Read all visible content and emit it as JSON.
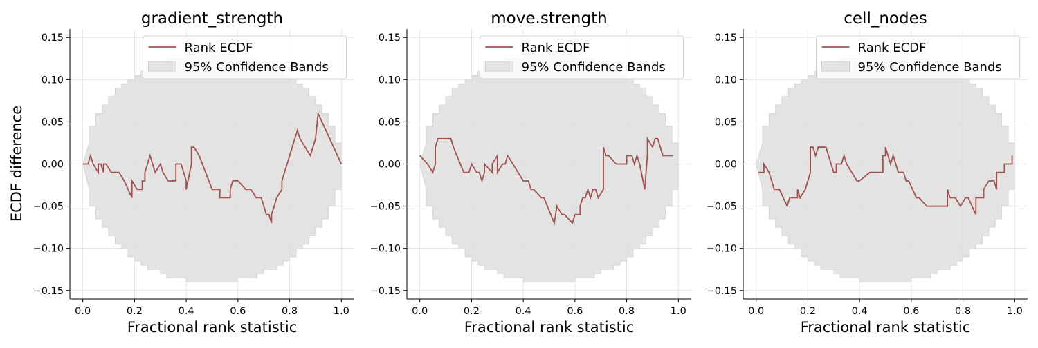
{
  "figure": {
    "ylabel": "ECDF difference"
  },
  "chart_data": [
    {
      "type": "line",
      "title": "gradient_strength",
      "xlabel": "Fractional rank statistic",
      "ylabel": "ECDF difference",
      "xlim": [
        -0.05,
        1.05
      ],
      "ylim": [
        -0.16,
        0.16
      ],
      "x_ticks": [
        "0.0",
        "0.2",
        "0.4",
        "0.6",
        "0.8",
        "1.0"
      ],
      "y_ticks": [
        "0.15",
        "0.10",
        "0.05",
        "0.00",
        "−0.05",
        "−0.10",
        "−0.15"
      ],
      "grid": true,
      "legend": {
        "position": "upper center",
        "entries": [
          "Rank ECDF",
          "95% Confidence Bands"
        ]
      },
      "series": [
        {
          "name": "Rank ECDF",
          "color": "#a0524f",
          "x": [
            0.0,
            0.02,
            0.03,
            0.04,
            0.06,
            0.06,
            0.07,
            0.08,
            0.08,
            0.09,
            0.11,
            0.14,
            0.16,
            0.19,
            0.19,
            0.21,
            0.23,
            0.23,
            0.24,
            0.24,
            0.26,
            0.27,
            0.28,
            0.3,
            0.31,
            0.33,
            0.33,
            0.36,
            0.36,
            0.38,
            0.4,
            0.4,
            0.42,
            0.42,
            0.43,
            0.45,
            0.5,
            0.53,
            0.53,
            0.57,
            0.57,
            0.58,
            0.6,
            0.6,
            0.63,
            0.65,
            0.67,
            0.69,
            0.71,
            0.72,
            0.73,
            0.73,
            0.74,
            0.75,
            0.75,
            0.77,
            0.77,
            0.78,
            0.78,
            0.79,
            0.79,
            0.81,
            0.81,
            0.83,
            0.83,
            0.84,
            0.84,
            0.86,
            0.86,
            0.88,
            0.9,
            0.91,
            0.91,
            1.0
          ],
          "y": [
            0.0,
            0.0,
            0.01,
            0.0,
            -0.01,
            0.0,
            0.0,
            -0.01,
            0.0,
            0.0,
            -0.01,
            -0.01,
            -0.02,
            -0.04,
            -0.02,
            -0.03,
            -0.03,
            -0.02,
            -0.02,
            -0.01,
            0.01,
            0.0,
            -0.01,
            0.0,
            -0.01,
            -0.02,
            -0.02,
            -0.02,
            0.0,
            0.0,
            -0.02,
            -0.03,
            0.0,
            0.02,
            0.02,
            0.01,
            -0.03,
            -0.03,
            -0.04,
            -0.04,
            -0.03,
            -0.02,
            -0.02,
            -0.02,
            -0.03,
            -0.03,
            -0.04,
            -0.04,
            -0.06,
            -0.06,
            -0.07,
            -0.06,
            -0.05,
            -0.04,
            -0.04,
            -0.03,
            -0.02,
            -0.01,
            -0.01,
            0.0,
            0.0,
            0.02,
            0.02,
            0.04,
            0.04,
            0.03,
            0.03,
            0.02,
            0.02,
            0.01,
            0.03,
            0.06,
            0.06,
            0.0
          ]
        }
      ]
    },
    {
      "type": "line",
      "title": "move.strength",
      "xlabel": "Fractional rank statistic",
      "ylabel": "",
      "xlim": [
        -0.05,
        1.05
      ],
      "ylim": [
        -0.16,
        0.16
      ],
      "x_ticks": [
        "0.0",
        "0.2",
        "0.4",
        "0.6",
        "0.8",
        "1.0"
      ],
      "y_ticks": [
        "0.15",
        "0.10",
        "0.05",
        "0.00",
        "−0.05",
        "−0.10",
        "−0.15"
      ],
      "grid": true,
      "legend": {
        "position": "upper center",
        "entries": [
          "Rank ECDF",
          "95% Confidence Bands"
        ]
      },
      "series": [
        {
          "name": "Rank ECDF",
          "color": "#a0524f",
          "x": [
            0.0,
            0.03,
            0.05,
            0.05,
            0.06,
            0.06,
            0.07,
            0.07,
            0.12,
            0.13,
            0.17,
            0.19,
            0.2,
            0.22,
            0.23,
            0.24,
            0.25,
            0.25,
            0.28,
            0.28,
            0.3,
            0.3,
            0.32,
            0.33,
            0.34,
            0.34,
            0.4,
            0.42,
            0.43,
            0.44,
            0.47,
            0.48,
            0.52,
            0.53,
            0.55,
            0.56,
            0.59,
            0.6,
            0.62,
            0.62,
            0.63,
            0.64,
            0.65,
            0.66,
            0.67,
            0.68,
            0.69,
            0.69,
            0.71,
            0.71,
            0.72,
            0.73,
            0.76,
            0.76,
            0.78,
            0.8,
            0.8,
            0.82,
            0.83,
            0.84,
            0.85,
            0.87,
            0.88,
            0.88,
            0.9,
            0.91,
            0.92,
            0.94,
            0.95,
            0.97,
            0.98
          ],
          "y": [
            0.01,
            0.0,
            -0.01,
            -0.01,
            0.0,
            0.02,
            0.03,
            0.03,
            0.03,
            0.02,
            -0.01,
            -0.01,
            0.0,
            -0.01,
            -0.01,
            -0.02,
            -0.01,
            0.0,
            -0.01,
            0.0,
            0.01,
            -0.01,
            0.0,
            0.0,
            0.01,
            0.01,
            -0.02,
            -0.02,
            -0.03,
            -0.03,
            -0.04,
            -0.04,
            -0.07,
            -0.05,
            -0.06,
            -0.06,
            -0.07,
            -0.06,
            -0.06,
            -0.05,
            -0.04,
            -0.04,
            -0.03,
            -0.04,
            -0.03,
            -0.03,
            -0.04,
            -0.04,
            -0.03,
            0.02,
            0.01,
            0.01,
            0.0,
            0.0,
            0.0,
            0.0,
            0.01,
            0.01,
            0.0,
            0.01,
            0.0,
            -0.03,
            0.01,
            0.03,
            0.02,
            0.03,
            0.03,
            0.01,
            0.01,
            0.01,
            0.01
          ]
        }
      ]
    },
    {
      "type": "line",
      "title": "cell_nodes",
      "xlabel": "Fractional rank statistic",
      "ylabel": "",
      "xlim": [
        -0.05,
        1.05
      ],
      "ylim": [
        -0.16,
        0.16
      ],
      "x_ticks": [
        "0.0",
        "0.2",
        "0.4",
        "0.6",
        "0.8",
        "1.0"
      ],
      "y_ticks": [
        "0.15",
        "0.10",
        "0.05",
        "0.00",
        "−0.05",
        "−0.10",
        "−0.15"
      ],
      "grid": true,
      "legend": {
        "position": "upper center",
        "entries": [
          "Rank ECDF",
          "95% Confidence Bands"
        ]
      },
      "series": [
        {
          "name": "Rank ECDF",
          "color": "#a0524f",
          "x": [
            0.01,
            0.03,
            0.03,
            0.05,
            0.07,
            0.09,
            0.12,
            0.13,
            0.13,
            0.16,
            0.16,
            0.17,
            0.17,
            0.19,
            0.19,
            0.21,
            0.21,
            0.22,
            0.23,
            0.23,
            0.24,
            0.27,
            0.28,
            0.29,
            0.3,
            0.31,
            0.31,
            0.33,
            0.34,
            0.35,
            0.37,
            0.39,
            0.4,
            0.44,
            0.46,
            0.46,
            0.49,
            0.49,
            0.5,
            0.5,
            0.51,
            0.52,
            0.53,
            0.53,
            0.55,
            0.57,
            0.58,
            0.59,
            0.62,
            0.63,
            0.66,
            0.68,
            0.74,
            0.74,
            0.75,
            0.75,
            0.77,
            0.77,
            0.79,
            0.81,
            0.82,
            0.82,
            0.85,
            0.85,
            0.88,
            0.88,
            0.9,
            0.9,
            0.92,
            0.93,
            0.93,
            0.95,
            0.96,
            0.96,
            0.99,
            0.99
          ],
          "y": [
            -0.01,
            -0.01,
            0.0,
            -0.01,
            -0.03,
            -0.03,
            -0.05,
            -0.04,
            -0.04,
            -0.04,
            -0.03,
            -0.04,
            -0.04,
            -0.03,
            -0.03,
            -0.01,
            0.02,
            0.02,
            0.01,
            0.01,
            0.02,
            0.02,
            0.01,
            0.0,
            -0.01,
            -0.01,
            0.0,
            0.0,
            0.01,
            0.0,
            -0.01,
            -0.02,
            -0.02,
            -0.01,
            -0.01,
            -0.01,
            -0.01,
            0.01,
            0.01,
            0.02,
            0.01,
            0.0,
            0.01,
            0.01,
            -0.01,
            -0.01,
            -0.02,
            -0.02,
            -0.04,
            -0.04,
            -0.05,
            -0.05,
            -0.05,
            -0.03,
            -0.04,
            -0.04,
            -0.04,
            -0.04,
            -0.05,
            -0.04,
            -0.04,
            -0.04,
            -0.06,
            -0.04,
            -0.04,
            -0.03,
            -0.02,
            -0.02,
            -0.02,
            -0.03,
            -0.01,
            -0.01,
            -0.01,
            0.0,
            0.0,
            0.01
          ]
        }
      ]
    }
  ]
}
